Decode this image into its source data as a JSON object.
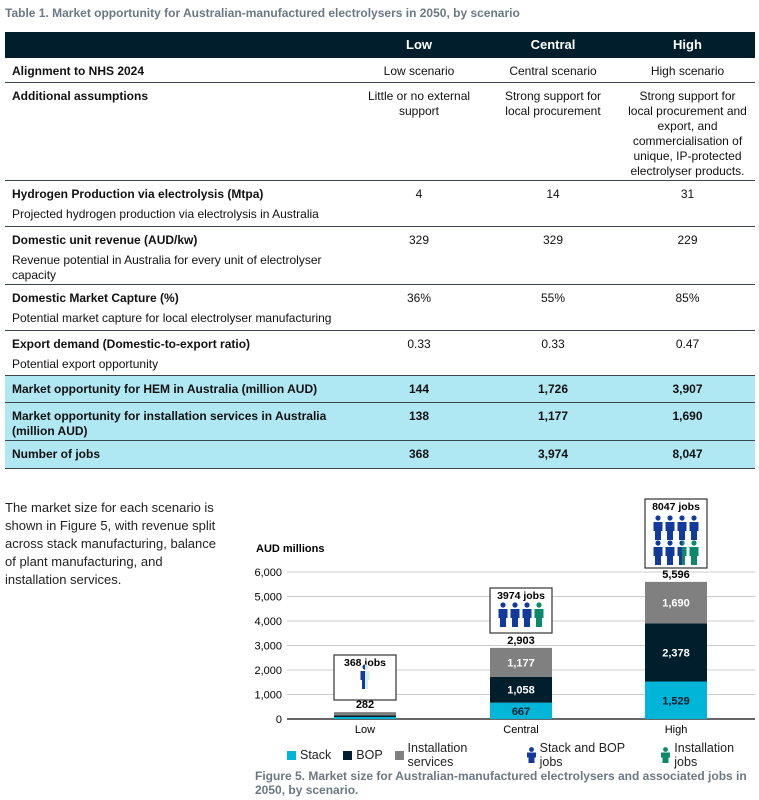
{
  "table": {
    "title": "Table 1. Market opportunity for Australian-manufactured electrolysers in 2050, by scenario",
    "headers": [
      "",
      "Low",
      "Central",
      "High"
    ],
    "rows": [
      {
        "label": "Alignment to NHS 2024",
        "sub": "",
        "values": [
          "Low scenario",
          "Central scenario",
          "High scenario"
        ],
        "highlight": false
      },
      {
        "label": "Additional assumptions",
        "sub": "",
        "values": [
          "Little or no external support",
          "Strong support for local procurement",
          "Strong support for local procurement and export, and commercialisation of unique, IP-protected electrolyser products."
        ],
        "highlight": false
      },
      {
        "label": "Hydrogen Production via electrolysis (Mtpa)",
        "sub": "Projected hydrogen production via electrolysis in Australia",
        "values": [
          "4",
          "14",
          "31"
        ],
        "highlight": false
      },
      {
        "label": "Domestic unit revenue (AUD/kw)",
        "sub": "Revenue potential in Australia for every unit of electrolyser capacity",
        "values": [
          "329",
          "329",
          "229"
        ],
        "highlight": false
      },
      {
        "label": "Domestic Market Capture (%)",
        "sub": "Potential market capture for local electrolyser manufacturing",
        "values": [
          "36%",
          "55%",
          "85%"
        ],
        "highlight": false
      },
      {
        "label": "Export demand (Domestic-to-export ratio)",
        "sub": "Potential export opportunity",
        "values": [
          "0.33",
          "0.33",
          "0.47"
        ],
        "highlight": false
      },
      {
        "label": "Market opportunity for HEM in Australia (million AUD)",
        "sub": "",
        "values": [
          "144",
          "1,726",
          "3,907"
        ],
        "highlight": true
      },
      {
        "label": "Market opportunity for installation services in Australia (million AUD)",
        "sub": "",
        "values": [
          "138",
          "1,177",
          "1,690"
        ],
        "highlight": true
      },
      {
        "label": "Number of jobs",
        "sub": "",
        "values": [
          "368",
          "3,974",
          "8,047"
        ],
        "highlight": true
      }
    ]
  },
  "paragraph": "The market size for each scenario is shown in Figure 5, with revenue split across stack manufacturing, balance of plant manufacturing, and installation services.",
  "chart_data": {
    "type": "bar",
    "stacked": true,
    "ylabel": "AUD millions",
    "ylim": [
      0,
      6000
    ],
    "yticks": [
      "0",
      "1,000",
      "2,000",
      "3,000",
      "4,000",
      "5,000",
      "6,000"
    ],
    "categories": [
      "Low",
      "Central",
      "High"
    ],
    "series": [
      {
        "name": "Stack",
        "color": "#00b5d8",
        "values": [
          80,
          667,
          1529
        ],
        "labels": [
          "",
          "667",
          "1,529"
        ]
      },
      {
        "name": "BOP",
        "color": "#011e2d",
        "values": [
          64,
          1058,
          2378
        ],
        "labels": [
          "",
          "1,058",
          "2,378"
        ]
      },
      {
        "name": "Installation services",
        "color": "#808080",
        "values": [
          138,
          1177,
          1690
        ],
        "labels": [
          "",
          "1,177",
          "1,690"
        ]
      }
    ],
    "totals": [
      "282",
      "2,903",
      "5,596"
    ],
    "jobs": [
      "368 jobs",
      "3974 jobs",
      "8047 jobs"
    ],
    "legend_jobs": [
      {
        "name": "Stack and BOP jobs",
        "color": "#12399c"
      },
      {
        "name": "Installation jobs",
        "color": "#0a8a6a"
      }
    ],
    "caption": "Figure 5. Market size for Australian-manufactured electrolysers and associated jobs in 2050, by scenario."
  }
}
